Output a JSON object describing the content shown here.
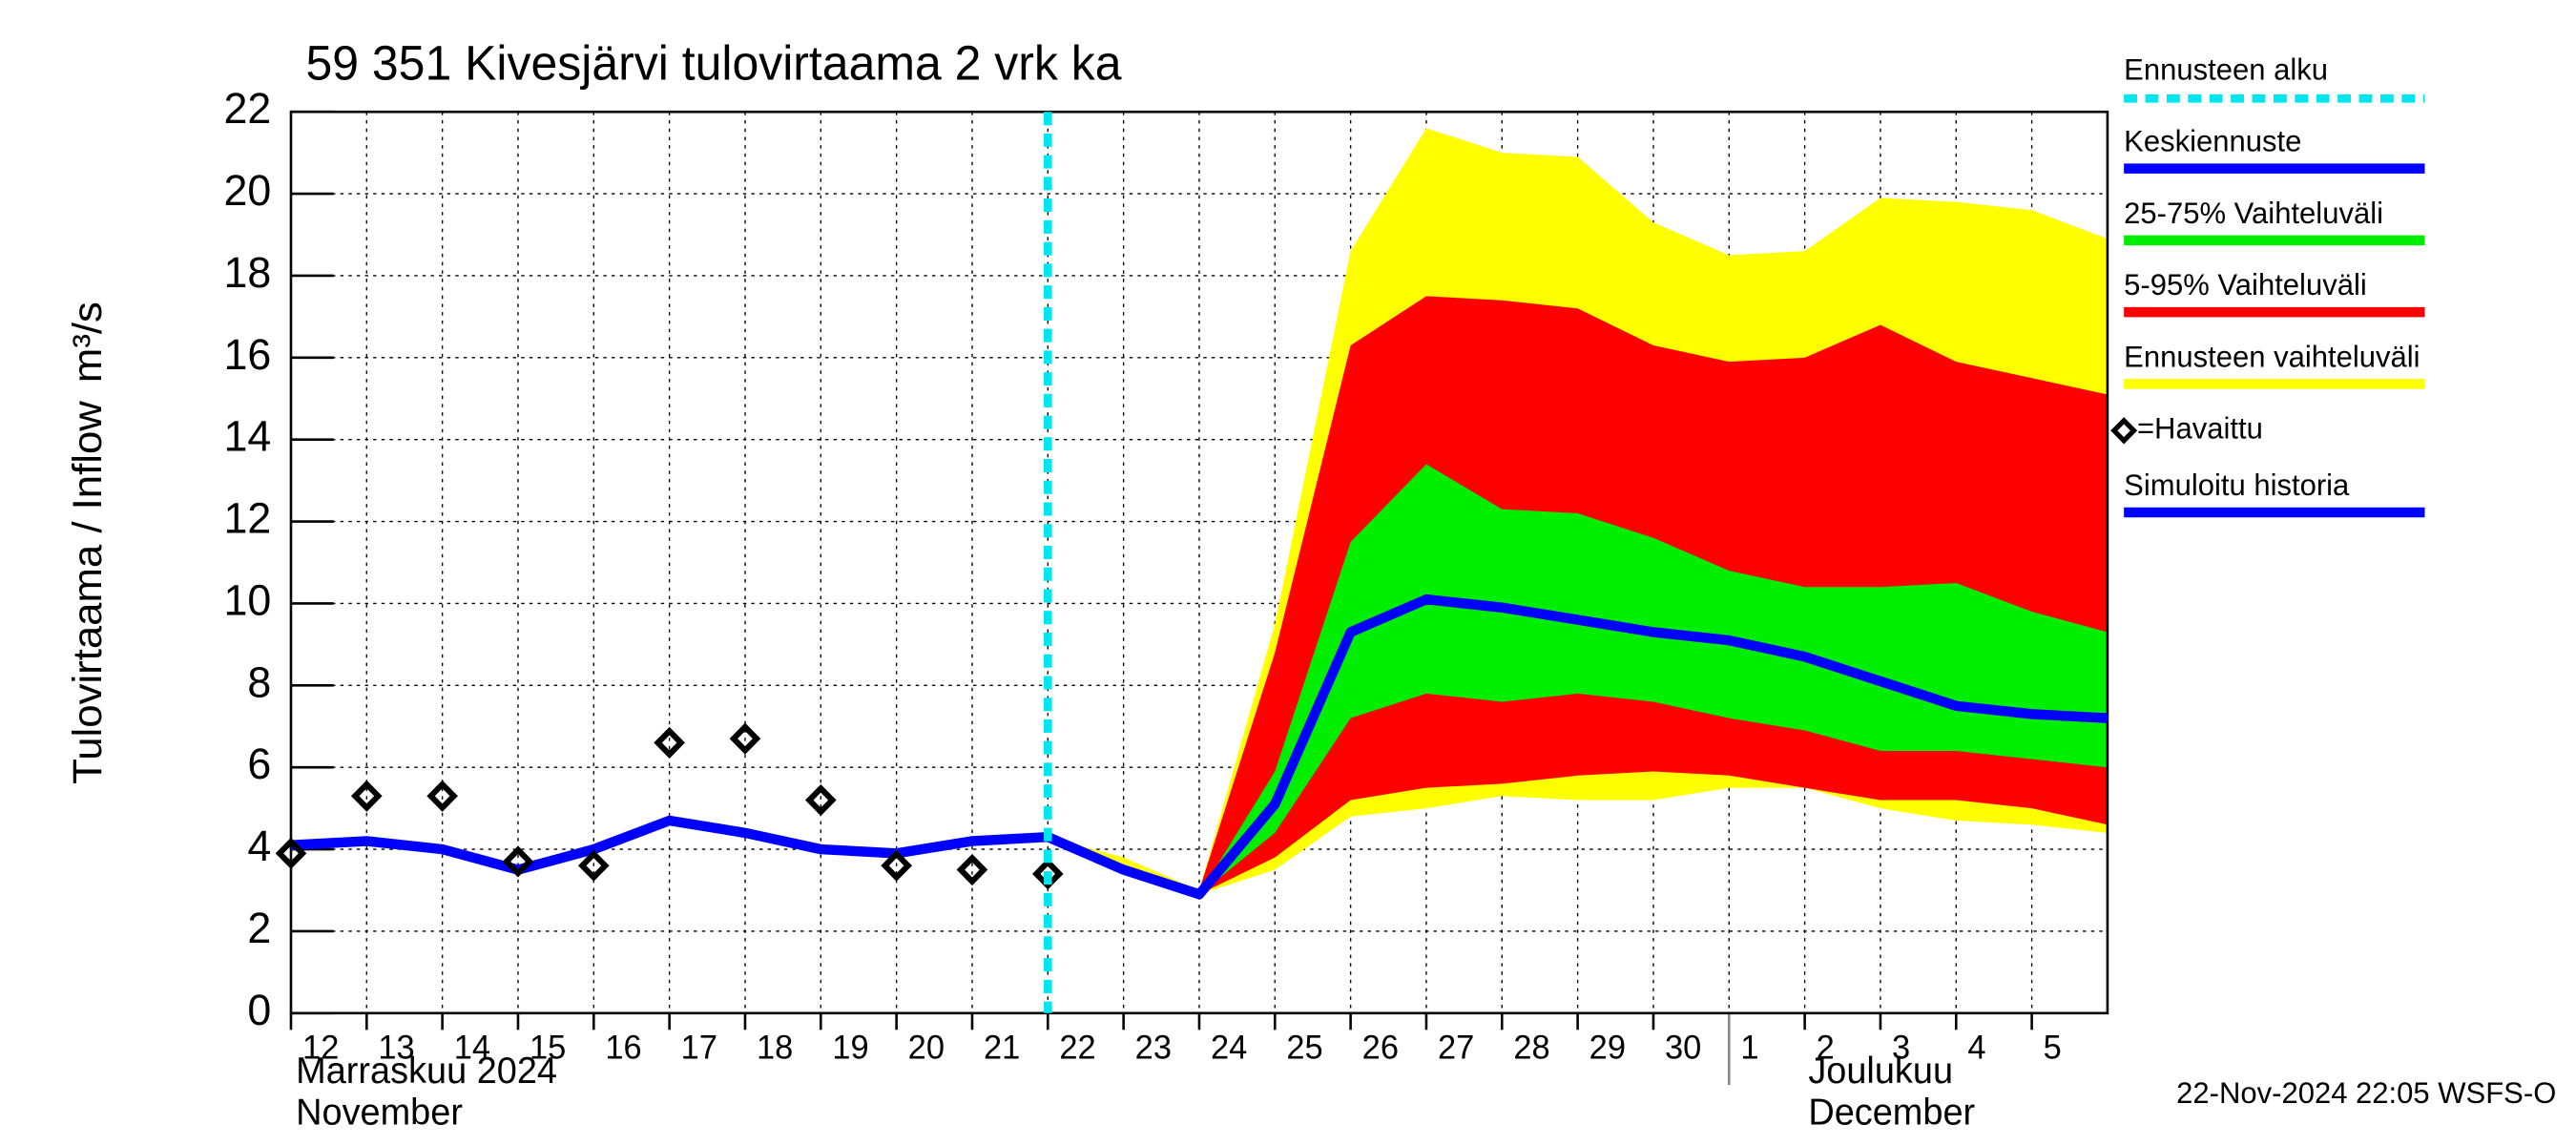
{
  "chart_data": {
    "type": "forecast",
    "title": "59 351 Kivesjärvi tulovirtaama 2 vrk ka",
    "y_label": "Tulovirtaama / Inflow",
    "y_unit": "m³/s",
    "month_labels": [
      "Marraskuu 2024",
      "November",
      "Joulukuu",
      "December"
    ],
    "footer": "22-Nov-2024 22:05 WSFS-O",
    "x": [
      "2024-11-12",
      "2024-11-13",
      "2024-11-14",
      "2024-11-15",
      "2024-11-16",
      "2024-11-17",
      "2024-11-18",
      "2024-11-19",
      "2024-11-20",
      "2024-11-21",
      "2024-11-22",
      "2024-11-23",
      "2024-11-24",
      "2024-11-25",
      "2024-11-26",
      "2024-11-27",
      "2024-11-28",
      "2024-11-29",
      "2024-11-30",
      "2024-12-01",
      "2024-12-02",
      "2024-12-03",
      "2024-12-04",
      "2024-12-05",
      "2024-12-06"
    ],
    "xlim": [
      "2024-11-12",
      "2024-12-06"
    ],
    "xticks": [
      {
        "value": "2024-11-12",
        "label": "12"
      },
      {
        "value": "2024-11-13",
        "label": "13"
      },
      {
        "value": "2024-11-14",
        "label": "14"
      },
      {
        "value": "2024-11-15",
        "label": "15"
      },
      {
        "value": "2024-11-16",
        "label": "16"
      },
      {
        "value": "2024-11-17",
        "label": "17"
      },
      {
        "value": "2024-11-18",
        "label": "18"
      },
      {
        "value": "2024-11-19",
        "label": "19"
      },
      {
        "value": "2024-11-20",
        "label": "20"
      },
      {
        "value": "2024-11-21",
        "label": "21"
      },
      {
        "value": "2024-11-22",
        "label": "22"
      },
      {
        "value": "2024-11-23",
        "label": "23"
      },
      {
        "value": "2024-11-24",
        "label": "24"
      },
      {
        "value": "2024-11-25",
        "label": "25"
      },
      {
        "value": "2024-11-26",
        "label": "26"
      },
      {
        "value": "2024-11-27",
        "label": "27"
      },
      {
        "value": "2024-11-28",
        "label": "28"
      },
      {
        "value": "2024-11-29",
        "label": "29"
      },
      {
        "value": "2024-11-30",
        "label": "30"
      },
      {
        "value": "2024-12-01",
        "label": "1"
      },
      {
        "value": "2024-12-02",
        "label": "2"
      },
      {
        "value": "2024-12-03",
        "label": "3"
      },
      {
        "value": "2024-12-04",
        "label": "4"
      },
      {
        "value": "2024-12-05",
        "label": "5"
      }
    ],
    "ylim": [
      0,
      22
    ],
    "yticks": [
      0,
      2,
      4,
      6,
      8,
      10,
      12,
      14,
      16,
      18,
      20,
      22
    ],
    "grid": true,
    "forecast_start": {
      "name": "Ennusteen alku",
      "x": "2024-11-22",
      "color": "#00e5ee"
    },
    "series": [
      {
        "name": "Keskiennuste",
        "kind": "line",
        "color": "#0000ff",
        "values": [
          null,
          null,
          null,
          null,
          null,
          null,
          null,
          null,
          null,
          null,
          4.3,
          3.5,
          2.9,
          5.1,
          9.3,
          10.1,
          9.9,
          9.6,
          9.3,
          9.1,
          8.7,
          8.1,
          7.5,
          7.3,
          7.2
        ]
      },
      {
        "name": "25-75% Vaihteluväli",
        "kind": "band",
        "color": "#00ee00",
        "low": [
          null,
          null,
          null,
          null,
          null,
          null,
          null,
          null,
          null,
          null,
          4.3,
          3.5,
          2.9,
          4.4,
          7.2,
          7.8,
          7.6,
          7.8,
          7.6,
          7.2,
          6.9,
          6.4,
          6.4,
          6.2,
          6.0
        ],
        "high": [
          null,
          null,
          null,
          null,
          null,
          null,
          null,
          null,
          null,
          null,
          4.3,
          3.5,
          2.9,
          5.9,
          11.5,
          13.4,
          12.3,
          12.2,
          11.6,
          10.8,
          10.4,
          10.4,
          10.5,
          9.8,
          9.3
        ]
      },
      {
        "name": "5-95% Vaihteluväli",
        "kind": "band",
        "color": "#ff0000",
        "low": [
          null,
          null,
          null,
          null,
          null,
          null,
          null,
          null,
          null,
          null,
          4.3,
          3.5,
          2.9,
          3.8,
          5.2,
          5.5,
          5.6,
          5.8,
          5.9,
          5.8,
          5.5,
          5.2,
          5.2,
          5.0,
          4.6
        ],
        "high": [
          null,
          null,
          null,
          null,
          null,
          null,
          null,
          null,
          null,
          null,
          4.3,
          3.6,
          3.0,
          8.8,
          16.3,
          17.5,
          17.4,
          17.2,
          16.3,
          15.9,
          16.0,
          16.8,
          15.9,
          15.5,
          15.1
        ]
      },
      {
        "name": "Ennusteen vaihteluväli",
        "kind": "band",
        "color": "#ffff00",
        "low": [
          null,
          null,
          null,
          null,
          null,
          null,
          null,
          null,
          null,
          null,
          4.3,
          3.4,
          2.9,
          3.5,
          4.8,
          5.0,
          5.3,
          5.2,
          5.2,
          5.5,
          5.5,
          5.0,
          4.7,
          4.6,
          4.4
        ],
        "high": [
          null,
          null,
          null,
          null,
          null,
          null,
          null,
          null,
          null,
          null,
          4.3,
          3.8,
          3.0,
          9.5,
          18.6,
          21.6,
          21.0,
          20.9,
          19.3,
          18.5,
          18.6,
          19.9,
          19.8,
          19.6,
          18.9
        ]
      },
      {
        "name": "=Havaittu",
        "kind": "markers",
        "color": "#000000",
        "values": [
          3.9,
          5.3,
          5.3,
          3.7,
          3.6,
          6.6,
          6.7,
          5.2,
          3.6,
          3.5,
          3.4,
          null,
          null,
          null,
          null,
          null,
          null,
          null,
          null,
          null,
          null,
          null,
          null,
          null,
          null
        ]
      },
      {
        "name": "Simuloitu historia",
        "kind": "line",
        "color": "#0000ff",
        "values": [
          4.1,
          4.2,
          4.0,
          3.5,
          4.0,
          4.7,
          4.4,
          4.0,
          3.9,
          4.2,
          4.3,
          null,
          null,
          null,
          null,
          null,
          null,
          null,
          null,
          null,
          null,
          null,
          null,
          null,
          null
        ]
      }
    ]
  }
}
